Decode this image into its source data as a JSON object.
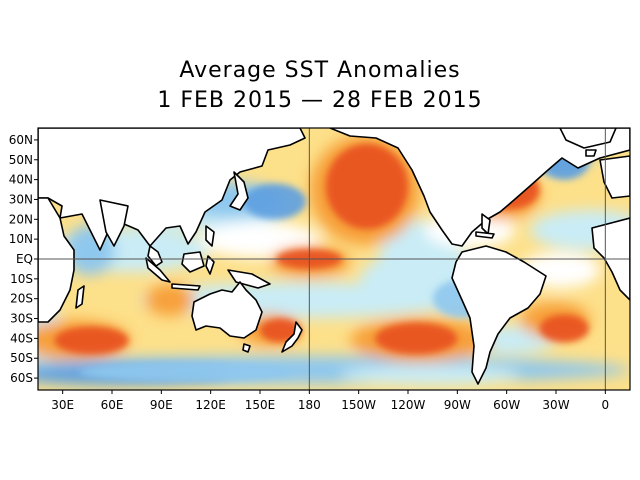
{
  "title": {
    "line1": "Average SST Anomalies",
    "line2": "1 FEB 2015 — 28 FEB 2015"
  },
  "map": {
    "projection": "equirectangular",
    "lon_range": [
      15,
      375
    ],
    "lat_range": [
      -66,
      66
    ],
    "equator_label": "EQ",
    "lat_ticks": [
      {
        "lat": 60,
        "label": "60N"
      },
      {
        "lat": 50,
        "label": "50N"
      },
      {
        "lat": 40,
        "label": "40N"
      },
      {
        "lat": 30,
        "label": "30N"
      },
      {
        "lat": 20,
        "label": "20N"
      },
      {
        "lat": 10,
        "label": "10N"
      },
      {
        "lat": 0,
        "label": "EQ"
      },
      {
        "lat": -10,
        "label": "10S"
      },
      {
        "lat": -20,
        "label": "20S"
      },
      {
        "lat": -30,
        "label": "30S"
      },
      {
        "lat": -40,
        "label": "40S"
      },
      {
        "lat": -50,
        "label": "50S"
      },
      {
        "lat": -60,
        "label": "60S"
      }
    ],
    "lon_ticks": [
      {
        "lon": 30,
        "label": "30E"
      },
      {
        "lon": 60,
        "label": "60E"
      },
      {
        "lon": 90,
        "label": "90E"
      },
      {
        "lon": 120,
        "label": "120E"
      },
      {
        "lon": 150,
        "label": "150E"
      },
      {
        "lon": 180,
        "label": "180"
      },
      {
        "lon": 210,
        "label": "150W"
      },
      {
        "lon": 240,
        "label": "120W"
      },
      {
        "lon": 270,
        "label": "90W"
      },
      {
        "lon": 300,
        "label": "60W"
      },
      {
        "lon": 330,
        "label": "30W"
      },
      {
        "lon": 360,
        "label": "0"
      }
    ],
    "reference_lines": {
      "equator_lat": 0,
      "dateline_lon": 180,
      "prime_meridian_lon": 360
    },
    "colors": {
      "strong_warm": "#e8501c",
      "warm": "#f7a03a",
      "mild_warm": "#fde08a",
      "near_zero": "#ffffff",
      "mild_cool": "#c9ecf6",
      "cool": "#8fc8ee",
      "strong_cool": "#5c9fe0",
      "land": "#ffffff",
      "coast": "#000000"
    },
    "anomaly_regions": [
      {
        "name": "northeast-pacific-warm",
        "level": "strong_warm",
        "lon": [
          190,
          240
        ],
        "lat": [
          15,
          58
        ]
      },
      {
        "name": "central-equatorial-pacific-warm",
        "level": "strong_warm",
        "lon": [
          160,
          200
        ],
        "lat": [
          -5,
          5
        ]
      },
      {
        "name": "south-pacific-warm",
        "level": "strong_warm",
        "lon": [
          220,
          270
        ],
        "lat": [
          -48,
          -32
        ]
      },
      {
        "name": "south-indian-warm",
        "level": "strong_warm",
        "lon": [
          25,
          70
        ],
        "lat": [
          -48,
          -34
        ]
      },
      {
        "name": "south-atlantic-warm",
        "level": "strong_warm",
        "lon": [
          320,
          350
        ],
        "lat": [
          -42,
          -28
        ]
      },
      {
        "name": "northwest-atlantic-warm",
        "level": "strong_warm",
        "lon": [
          283,
          320
        ],
        "lat": [
          25,
          45
        ]
      },
      {
        "name": "tasman-warm",
        "level": "strong_warm",
        "lon": [
          150,
          175
        ],
        "lat": [
          -42,
          -30
        ]
      },
      {
        "name": "north-pacific-cool",
        "level": "strong_cool",
        "lon": [
          140,
          178
        ],
        "lat": [
          20,
          38
        ]
      },
      {
        "name": "north-atlantic-cool",
        "level": "strong_cool",
        "lon": [
          320,
          350
        ],
        "lat": [
          40,
          58
        ]
      },
      {
        "name": "southern-ocean-cool",
        "level": "cool",
        "lon": [
          40,
          170
        ],
        "lat": [
          -62,
          -52
        ]
      },
      {
        "name": "southeast-pacific-cool",
        "level": "cool",
        "lon": [
          255,
          295
        ],
        "lat": [
          -30,
          -10
        ]
      }
    ]
  }
}
